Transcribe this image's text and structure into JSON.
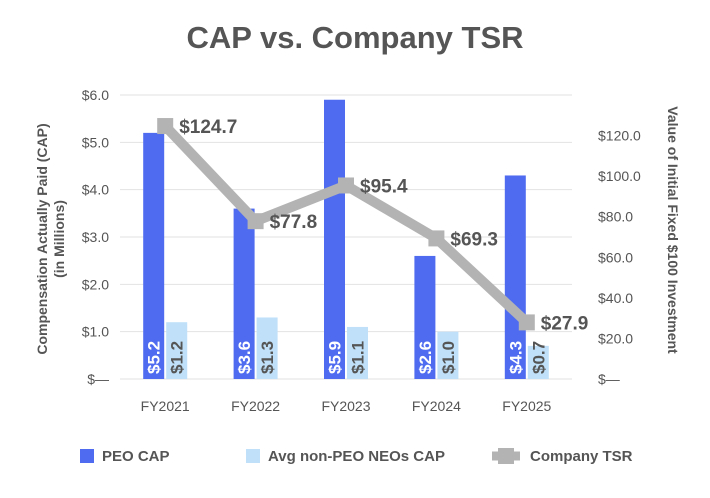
{
  "chart_data": {
    "type": "bar",
    "title": "CAP vs. Company TSR",
    "categories": [
      "FY2021",
      "FY2022",
      "FY2023",
      "FY2024",
      "FY2025"
    ],
    "ylabel_left": [
      "Compensation Actually Paid (CAP)",
      "(in Millions)"
    ],
    "ylabel_right": "Value of Initial Fixed $100 Investment",
    "ylim_left": [
      0,
      6
    ],
    "ylim_right": [
      0,
      140
    ],
    "left_ticks": [
      "$—",
      "$1.0",
      "$2.0",
      "$3.0",
      "$4.0",
      "$5.0",
      "$6.0"
    ],
    "right_ticks": [
      "$—",
      "$20.0",
      "$40.0",
      "$60.0",
      "$80.0",
      "$100.0",
      "$120.0"
    ],
    "series": [
      {
        "name": "PEO CAP",
        "type": "bar",
        "axis": "left",
        "color": "#4f6cf0",
        "values": [
          5.2,
          3.6,
          5.9,
          2.6,
          4.3
        ],
        "labels": [
          "$5.2",
          "$3.6",
          "$5.9",
          "$2.6",
          "$4.3"
        ]
      },
      {
        "name": "Avg non-PEO NEOs CAP",
        "type": "bar",
        "axis": "left",
        "color": "#bfe0f8",
        "values": [
          1.2,
          1.3,
          1.1,
          1.0,
          0.7
        ],
        "labels": [
          "$1.2",
          "$1.3",
          "$1.1",
          "$1.0",
          "$0.7"
        ]
      },
      {
        "name": "Company TSR",
        "type": "line",
        "axis": "right",
        "color": "#b3b3b3",
        "values": [
          124.7,
          77.8,
          95.4,
          69.3,
          27.9
        ],
        "labels": [
          "$124.7",
          "$77.8",
          "$95.4",
          "$69.3",
          "$27.9"
        ]
      }
    ],
    "legend": [
      {
        "label": "PEO CAP",
        "marker": "square",
        "color": "#4f6cf0"
      },
      {
        "label": "Avg non-PEO NEOs CAP",
        "marker": "square",
        "color": "#bfe0f8"
      },
      {
        "label": "Company TSR",
        "marker": "line-square",
        "color": "#b3b3b3"
      }
    ],
    "legend_position": "bottom"
  }
}
